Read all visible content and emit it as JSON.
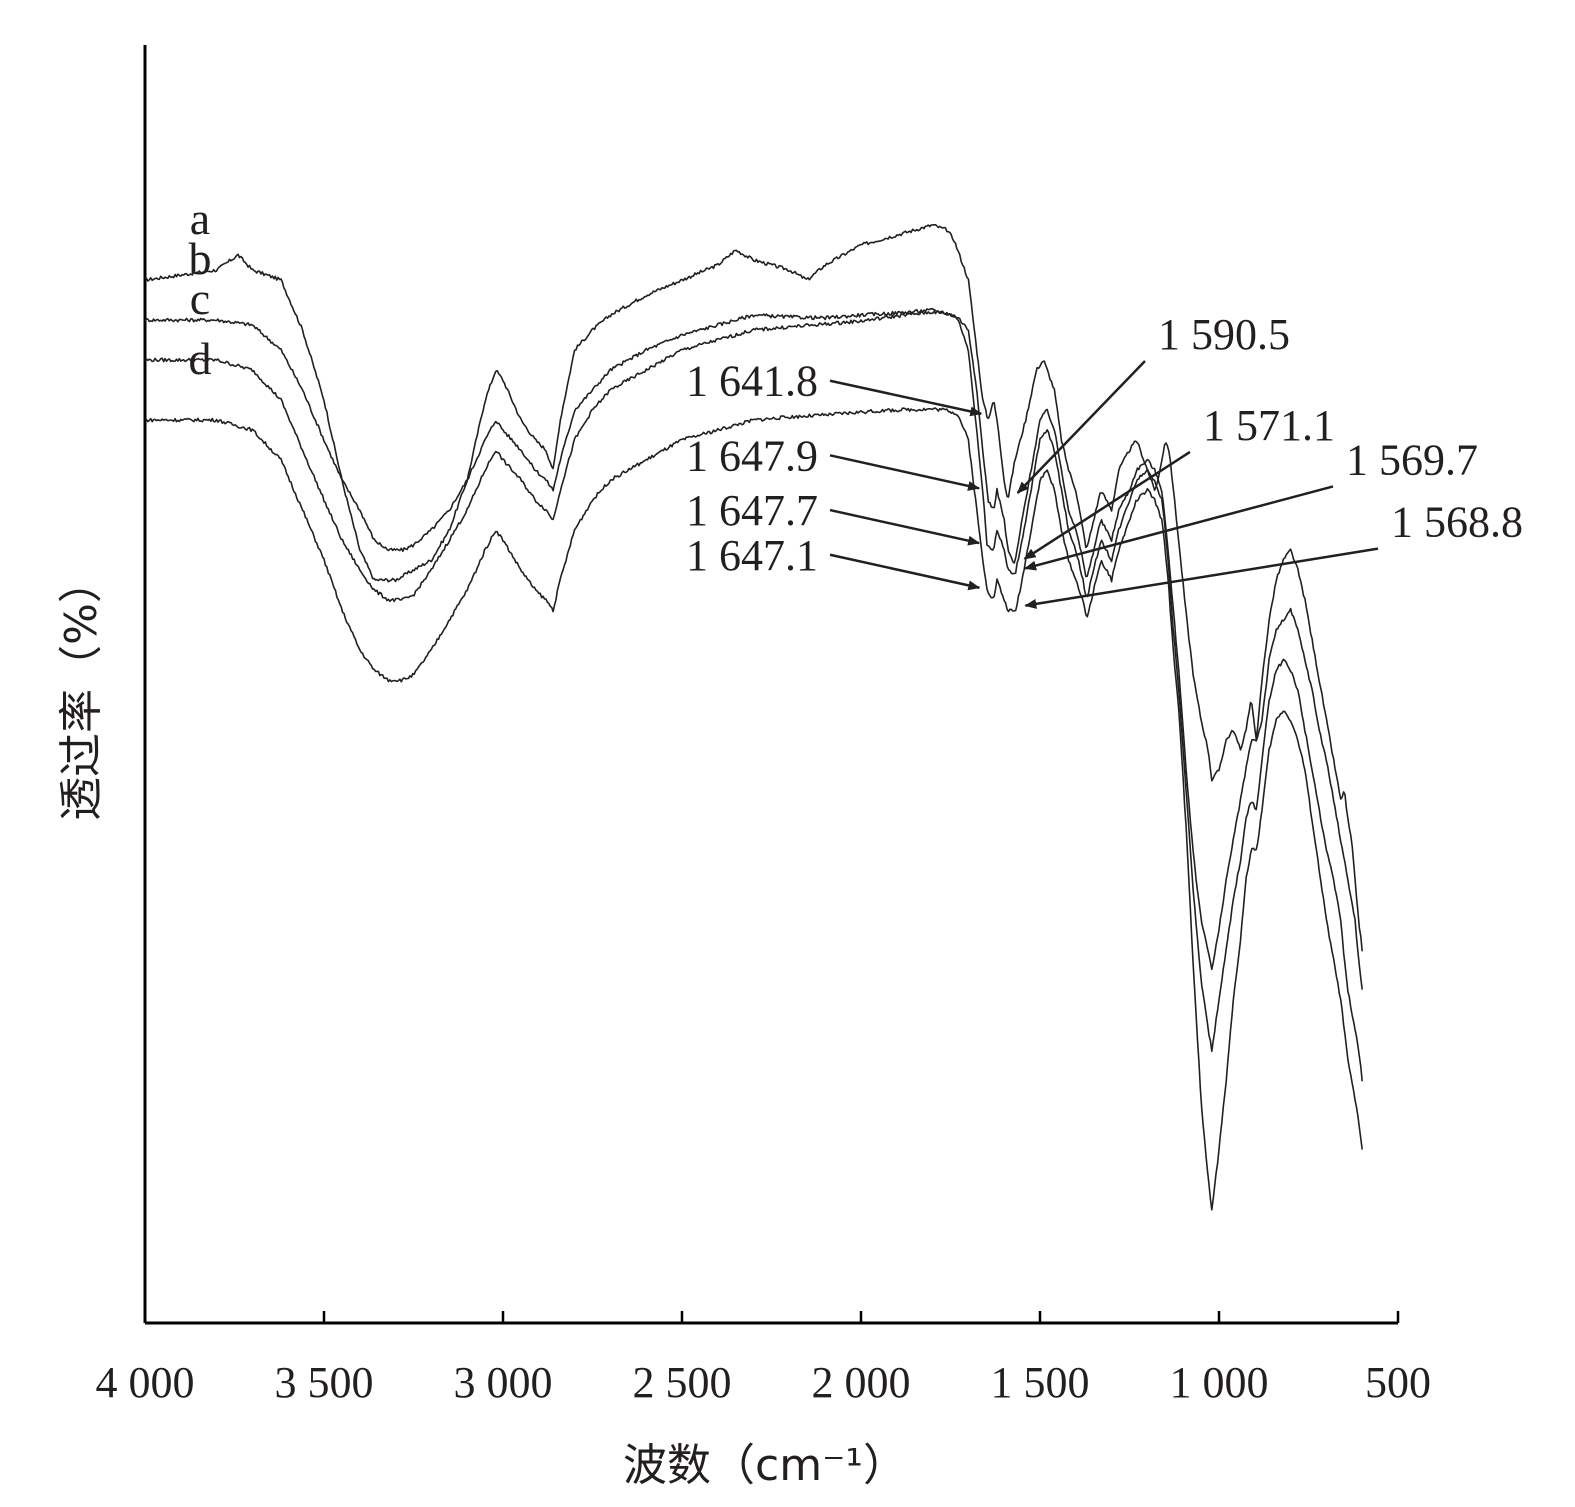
{
  "chart_data": {
    "type": "line",
    "title": "",
    "xlabel": "波数（cm⁻¹）",
    "ylabel": "透过率（%）",
    "xlim": [
      4000,
      500
    ],
    "x_reversed": true,
    "x_ticks": [
      4000,
      3500,
      3000,
      2500,
      2000,
      1500,
      1000,
      500
    ],
    "x_tick_labels": [
      "4 000",
      "3 500",
      "3 000",
      "2 500",
      "2 000",
      "1 500",
      "1 000",
      "500"
    ],
    "y_ticks_shown": false,
    "grid": false,
    "legend": "none",
    "series": [
      {
        "name": "a",
        "x": [
          4000,
          3900,
          3800,
          3740,
          3700,
          3620,
          3560,
          3500,
          3450,
          3400,
          3360,
          3300,
          3250,
          3200,
          3150,
          3100,
          3050,
          3020,
          3000,
          2950,
          2910,
          2880,
          2860,
          2840,
          2800,
          2750,
          2700,
          2600,
          2500,
          2400,
          2350,
          2300,
          2200,
          2150,
          2100,
          2000,
          1900,
          1800,
          1760,
          1740,
          1700,
          1680,
          1660,
          1645,
          1630,
          1620,
          1600,
          1590,
          1570,
          1540,
          1510,
          1490,
          1460,
          1440,
          1420,
          1400,
          1380,
          1370,
          1350,
          1330,
          1300,
          1280,
          1250,
          1230,
          1200,
          1180,
          1170,
          1160,
          1150,
          1140,
          1130,
          1110,
          1090,
          1070,
          1050,
          1030,
          1020,
          1000,
          980,
          960,
          940,
          925,
          910,
          895,
          880,
          860,
          840,
          820,
          800,
          780,
          760,
          740,
          720,
          700,
          680,
          670,
          660,
          650,
          640,
          630,
          620,
          610,
          600
        ],
        "y": [
          42,
          42.5,
          43,
          44.5,
          43,
          42,
          37,
          30,
          22,
          15,
          12,
          12,
          13,
          14,
          17,
          22,
          30,
          33,
          32,
          28,
          26,
          25,
          23,
          28,
          35,
          37,
          38.5,
          40.5,
          42,
          43.5,
          45,
          44,
          43,
          42,
          43.5,
          45.5,
          46.5,
          47.5,
          47,
          46,
          42,
          36,
          30,
          28,
          30,
          28,
          22,
          20,
          24,
          28,
          33,
          34,
          31,
          26,
          23,
          21,
          17,
          15,
          18,
          21,
          19,
          23,
          25,
          26,
          23,
          21,
          22,
          24,
          26,
          25,
          22,
          15,
          8,
          2,
          -2,
          -5,
          -8,
          -7,
          -4,
          -3,
          -5,
          -3,
          0,
          -4,
          2,
          8,
          12,
          14,
          15,
          13,
          10,
          6,
          2,
          -2,
          -6,
          -8,
          -10,
          -9,
          -12,
          -14,
          -18,
          -22,
          -25
        ]
      },
      {
        "name": "b",
        "x": [
          4000,
          3900,
          3800,
          3700,
          3620,
          3560,
          3500,
          3450,
          3400,
          3360,
          3320,
          3280,
          3250,
          3200,
          3150,
          3100,
          3050,
          3020,
          3000,
          2950,
          2910,
          2880,
          2860,
          2840,
          2800,
          2750,
          2700,
          2600,
          2500,
          2400,
          2300,
          2200,
          2100,
          2000,
          1900,
          1800,
          1760,
          1730,
          1700,
          1680,
          1660,
          1645,
          1630,
          1620,
          1600,
          1590,
          1571,
          1550,
          1520,
          1500,
          1480,
          1460,
          1440,
          1420,
          1400,
          1380,
          1370,
          1350,
          1330,
          1300,
          1280,
          1250,
          1230,
          1200,
          1180,
          1170,
          1160,
          1150,
          1140,
          1130,
          1110,
          1090,
          1070,
          1050,
          1030,
          1020,
          1000,
          980,
          960,
          940,
          925,
          910,
          895,
          880,
          860,
          840,
          820,
          800,
          780,
          760,
          740,
          720,
          700,
          680,
          660,
          650,
          640,
          630,
          620,
          610,
          600
        ],
        "y": [
          38,
          38,
          38,
          37.5,
          35,
          31,
          26,
          22,
          19,
          16,
          15,
          15,
          15.5,
          17,
          19,
          22,
          26,
          28,
          27,
          25,
          23,
          22,
          21,
          24,
          29,
          31,
          33,
          35,
          36.5,
          37.5,
          38.5,
          38.3,
          38.2,
          38.5,
          38.7,
          39,
          38.7,
          38.3,
          37,
          32,
          25,
          20,
          19,
          21,
          18,
          15,
          13.5,
          18,
          24,
          28,
          29,
          27,
          23,
          19,
          17,
          14,
          12,
          15,
          18,
          16,
          19,
          21,
          23,
          24,
          23,
          22,
          21,
          18,
          14,
          10,
          2,
          -8,
          -16,
          -22,
          -25,
          -27,
          -23,
          -18,
          -14,
          -10,
          -7,
          -4,
          -4,
          -2,
          4,
          7,
          8,
          9,
          7,
          4,
          1,
          -3,
          -6,
          -10,
          -14,
          -16,
          -18,
          -20,
          -22,
          -26,
          -29
        ]
      },
      {
        "name": "c",
        "x": [
          4000,
          3900,
          3800,
          3700,
          3620,
          3560,
          3500,
          3450,
          3400,
          3360,
          3320,
          3280,
          3250,
          3200,
          3150,
          3100,
          3050,
          3020,
          3000,
          2950,
          2910,
          2880,
          2860,
          2840,
          2800,
          2750,
          2700,
          2600,
          2500,
          2400,
          2300,
          2200,
          2100,
          2000,
          1900,
          1800,
          1760,
          1730,
          1700,
          1680,
          1660,
          1648,
          1630,
          1620,
          1600,
          1590,
          1570,
          1550,
          1520,
          1500,
          1480,
          1460,
          1440,
          1420,
          1400,
          1380,
          1370,
          1350,
          1330,
          1300,
          1280,
          1250,
          1230,
          1200,
          1180,
          1170,
          1160,
          1150,
          1140,
          1130,
          1110,
          1090,
          1070,
          1050,
          1030,
          1020,
          1000,
          980,
          960,
          940,
          925,
          910,
          895,
          880,
          860,
          840,
          820,
          800,
          780,
          760,
          740,
          720,
          700,
          680,
          660,
          650,
          640,
          630,
          620,
          610,
          600
        ],
        "y": [
          34,
          34,
          34,
          33,
          30,
          25,
          20,
          16,
          13,
          11,
          10,
          10,
          10.5,
          13,
          16,
          19,
          23,
          25,
          24,
          22,
          20,
          19,
          18,
          21,
          26,
          29,
          31,
          33,
          35,
          36,
          37,
          37.3,
          37.6,
          37.9,
          38.4,
          38.8,
          38.6,
          38.2,
          35,
          28,
          21,
          15.5,
          15,
          17,
          15,
          13,
          12.5,
          16,
          22,
          26,
          27,
          25,
          21,
          17,
          15,
          12,
          10,
          13,
          16,
          14,
          17,
          20,
          22,
          23,
          22,
          21,
          20,
          17,
          13,
          8,
          0,
          -10,
          -20,
          -28,
          -33,
          -35,
          -30,
          -25,
          -20,
          -16,
          -12,
          -10,
          -11,
          -6,
          0,
          3,
          4,
          3,
          1,
          -3,
          -7,
          -11,
          -15,
          -18,
          -22,
          -26,
          -29,
          -31,
          -33,
          -35,
          -38
        ]
      },
      {
        "name": "d",
        "x": [
          4000,
          3900,
          3800,
          3700,
          3620,
          3560,
          3500,
          3450,
          3400,
          3360,
          3320,
          3280,
          3250,
          3200,
          3150,
          3100,
          3050,
          3020,
          3000,
          2950,
          2910,
          2880,
          2860,
          2840,
          2800,
          2750,
          2700,
          2600,
          2500,
          2400,
          2300,
          2200,
          2100,
          2000,
          1900,
          1800,
          1760,
          1730,
          1700,
          1680,
          1660,
          1647,
          1630,
          1620,
          1600,
          1590,
          1569,
          1550,
          1520,
          1500,
          1480,
          1460,
          1440,
          1420,
          1400,
          1380,
          1370,
          1350,
          1330,
          1300,
          1280,
          1250,
          1230,
          1200,
          1180,
          1170,
          1160,
          1150,
          1140,
          1130,
          1110,
          1090,
          1070,
          1050,
          1030,
          1020,
          1000,
          980,
          960,
          940,
          925,
          910,
          895,
          880,
          860,
          840,
          820,
          800,
          780,
          760,
          740,
          720,
          700,
          680,
          660,
          650,
          640,
          630,
          620,
          610,
          600
        ],
        "y": [
          28,
          28,
          28,
          27,
          24,
          19,
          14,
          9,
          5,
          3,
          2,
          2,
          2.5,
          5,
          8,
          11,
          15,
          17,
          16,
          13,
          11,
          10,
          9,
          12,
          17,
          20,
          22,
          24,
          26,
          27,
          28,
          28.3,
          28.5,
          28.8,
          29,
          29.1,
          29,
          28.6,
          26,
          20,
          14,
          11,
          10,
          12,
          10,
          9,
          8.8,
          12,
          18,
          22,
          23,
          21,
          17,
          14,
          12,
          10,
          8,
          11,
          14,
          12,
          15,
          18,
          20,
          21,
          20,
          19,
          18,
          15,
          11,
          6,
          -2,
          -14,
          -28,
          -40,
          -48,
          -51,
          -45,
          -38,
          -30,
          -24,
          -18,
          -15,
          -15,
          -11,
          -5,
          -2,
          -1,
          -2,
          -4,
          -7,
          -12,
          -17,
          -22,
          -26,
          -30,
          -33,
          -36,
          -38,
          -40,
          -42,
          -45
        ]
      }
    ],
    "series_labels": [
      "a",
      "b",
      "c",
      "d"
    ],
    "annotations": [
      {
        "series": "a",
        "text": "1 641.8",
        "x": 1641.8
      },
      {
        "series": "a",
        "text": "1 590.5",
        "x": 1590.5
      },
      {
        "series": "b",
        "text": "1 647.9",
        "x": 1647.9
      },
      {
        "series": "b",
        "text": "1 571.1",
        "x": 1571.1
      },
      {
        "series": "c",
        "text": "1 647.7",
        "x": 1647.7
      },
      {
        "series": "c",
        "text": "1 569.7",
        "x": 1569.7
      },
      {
        "series": "d",
        "text": "1 647.1",
        "x": 1647.1
      },
      {
        "series": "d",
        "text": "1 568.8",
        "x": 1568.8
      }
    ]
  }
}
